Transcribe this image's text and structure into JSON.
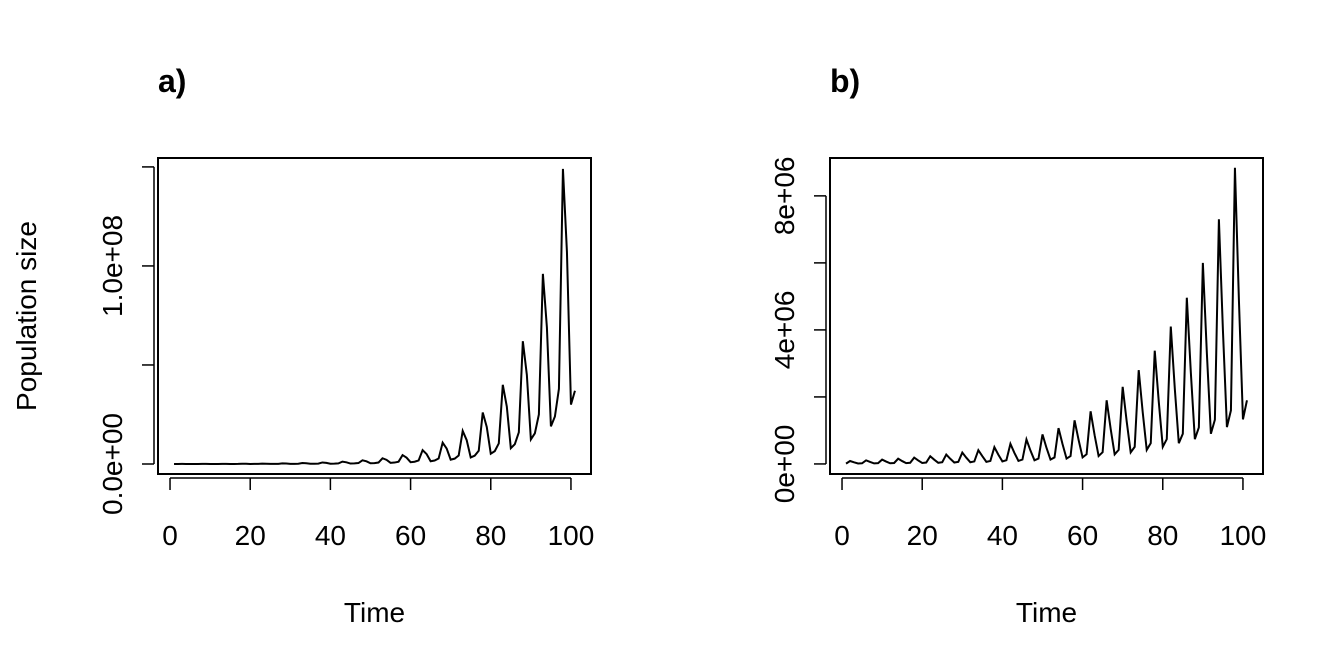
{
  "chart_data": [
    {
      "type": "line",
      "title": "a)",
      "x_label": "Time",
      "y_label": "Population size",
      "xlim": [
        -3,
        105
      ],
      "ylim": [
        -5050000,
        154500000
      ],
      "xticks": [
        0,
        20,
        40,
        60,
        80,
        100
      ],
      "yticks": [
        {
          "value": 0,
          "label": "0.0e+00"
        },
        {
          "value": 50000000,
          "label": null
        },
        {
          "value": 100000000,
          "label": "1.0e+08"
        },
        {
          "value": 150000000,
          "label": null
        }
      ],
      "color": "#000000",
      "x": [
        1,
        2,
        3,
        4,
        5,
        6,
        7,
        8,
        9,
        10,
        11,
        12,
        13,
        14,
        15,
        16,
        17,
        18,
        19,
        20,
        21,
        22,
        23,
        24,
        25,
        26,
        27,
        28,
        29,
        30,
        31,
        32,
        33,
        34,
        35,
        36,
        37,
        38,
        39,
        40,
        41,
        42,
        43,
        44,
        45,
        46,
        47,
        48,
        49,
        50,
        51,
        52,
        53,
        54,
        55,
        56,
        57,
        58,
        59,
        60,
        61,
        62,
        63,
        64,
        65,
        66,
        67,
        68,
        69,
        70,
        71,
        72,
        73,
        74,
        75,
        76,
        77,
        78,
        79,
        80,
        81,
        82,
        83,
        84,
        85,
        86,
        87,
        88,
        89,
        90,
        91,
        92,
        93,
        94,
        95,
        96,
        97,
        98,
        99,
        100,
        101
      ],
      "values": [
        10000,
        15000,
        36000,
        26000,
        7200,
        9000,
        14000,
        56000,
        40000,
        11000,
        14000,
        22000,
        87000,
        63000,
        17000,
        22000,
        35000,
        135000,
        97000,
        27000,
        34000,
        54000,
        210000,
        150000,
        42000,
        53000,
        84000,
        320000,
        230000,
        64000,
        80000,
        130000,
        500000,
        360000,
        100000,
        125000,
        200000,
        780000,
        560000,
        156000,
        195000,
        310000,
        1200000,
        860000,
        240000,
        300000,
        480000,
        1870000,
        1350000,
        370000,
        470000,
        750000,
        2900000,
        2100000,
        580000,
        730000,
        1160000,
        4500000,
        3200000,
        900000,
        1130000,
        1800000,
        7000000,
        5000000,
        1400000,
        1750000,
        2800000,
        10800000,
        7800000,
        2200000,
        2700000,
        4300000,
        16700000,
        12000000,
        3300000,
        4200000,
        6700000,
        26000000,
        18700000,
        5200000,
        6500000,
        10400000,
        40000000,
        29000000,
        8000000,
        10000000,
        16000000,
        62000000,
        45000000,
        12400000,
        15500000,
        25000000,
        96000000,
        69000000,
        19000000,
        24000000,
        38000000,
        149000000,
        107000000,
        30000000,
        37000000
      ]
    },
    {
      "type": "line",
      "title": "b)",
      "x_label": "Time",
      "xlim": [
        -3,
        105
      ],
      "ylim": [
        -300000,
        9130000
      ],
      "xticks": [
        0,
        20,
        40,
        60,
        80,
        100
      ],
      "yticks": [
        {
          "value": 0,
          "label": "0e+00"
        },
        {
          "value": 2000000,
          "label": null
        },
        {
          "value": 4000000,
          "label": "4e+06"
        },
        {
          "value": 6000000,
          "label": null
        },
        {
          "value": 8000000,
          "label": "8e+06"
        }
      ],
      "color": "#000000",
      "x": [
        1,
        2,
        3,
        4,
        5,
        6,
        7,
        8,
        9,
        10,
        11,
        12,
        13,
        14,
        15,
        16,
        17,
        18,
        19,
        20,
        21,
        22,
        23,
        24,
        25,
        26,
        27,
        28,
        29,
        30,
        31,
        32,
        33,
        34,
        35,
        36,
        37,
        38,
        39,
        40,
        41,
        42,
        43,
        44,
        45,
        46,
        47,
        48,
        49,
        50,
        51,
        52,
        53,
        54,
        55,
        56,
        57,
        58,
        59,
        60,
        61,
        62,
        63,
        64,
        65,
        66,
        67,
        68,
        69,
        70,
        71,
        72,
        73,
        74,
        75,
        76,
        77,
        78,
        79,
        80,
        81,
        82,
        83,
        84,
        85,
        86,
        87,
        88,
        89,
        90,
        91,
        92,
        93,
        94,
        95,
        96,
        97,
        98,
        99,
        100,
        101
      ],
      "values": [
        10000,
        88000,
        48000,
        13000,
        19000,
        107000,
        59000,
        16000,
        24000,
        130000,
        72000,
        20000,
        29000,
        157000,
        86000,
        24000,
        35000,
        190000,
        105000,
        29000,
        42000,
        230000,
        127000,
        35000,
        51000,
        280000,
        154000,
        42000,
        62000,
        340000,
        187000,
        51000,
        75000,
        410000,
        230000,
        62000,
        90000,
        500000,
        275000,
        75000,
        110000,
        600000,
        330000,
        90000,
        132000,
        730000,
        400000,
        110000,
        160000,
        880000,
        480000,
        132000,
        194000,
        1070000,
        590000,
        160000,
        235000,
        1300000,
        720000,
        195000,
        290000,
        1570000,
        860000,
        236000,
        350000,
        1900000,
        1050000,
        285000,
        420000,
        2300000,
        1270000,
        345000,
        510000,
        2800000,
        1540000,
        420000,
        620000,
        3380000,
        1860000,
        510000,
        740000,
        4100000,
        2250000,
        620000,
        900000,
        4960000,
        2730000,
        740000,
        1090000,
        6000000,
        3300000,
        900000,
        1320000,
        7300000,
        4000000,
        1100000,
        1600000,
        8840000,
        4860000,
        1330000,
        1900000
      ]
    }
  ]
}
